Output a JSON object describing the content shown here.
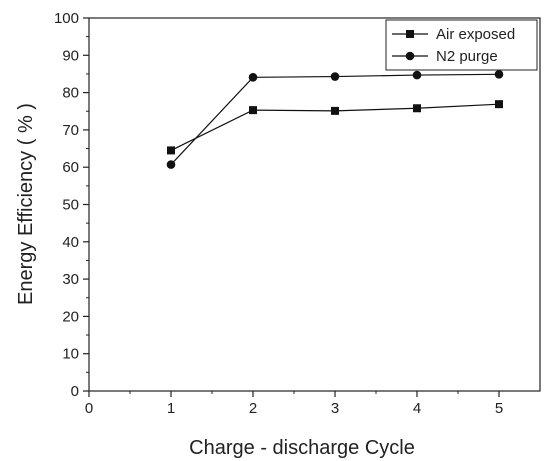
{
  "chart_data": {
    "type": "line",
    "xlabel": "Charge - discharge Cycle",
    "ylabel": "Energy Efficiency ( % )",
    "xlim": [
      0,
      5.5
    ],
    "ylim": [
      0,
      100
    ],
    "xticks": [
      "0",
      "1",
      "2",
      "3",
      "4",
      "5"
    ],
    "yticks": [
      "0",
      "10",
      "20",
      "30",
      "40",
      "50",
      "60",
      "70",
      "80",
      "90",
      "100"
    ],
    "legend_position": "top-right",
    "grid": false,
    "series": [
      {
        "name": "Air exposed",
        "marker": "square",
        "color": "#111111",
        "x": [
          1,
          2,
          3,
          4,
          5
        ],
        "values": [
          64.5,
          75.3,
          75.1,
          75.8,
          76.9
        ]
      },
      {
        "name": "N2 purge",
        "marker": "circle",
        "color": "#111111",
        "x": [
          1,
          2,
          3,
          4,
          5
        ],
        "values": [
          60.7,
          84.1,
          84.3,
          84.7,
          84.9
        ]
      }
    ]
  }
}
